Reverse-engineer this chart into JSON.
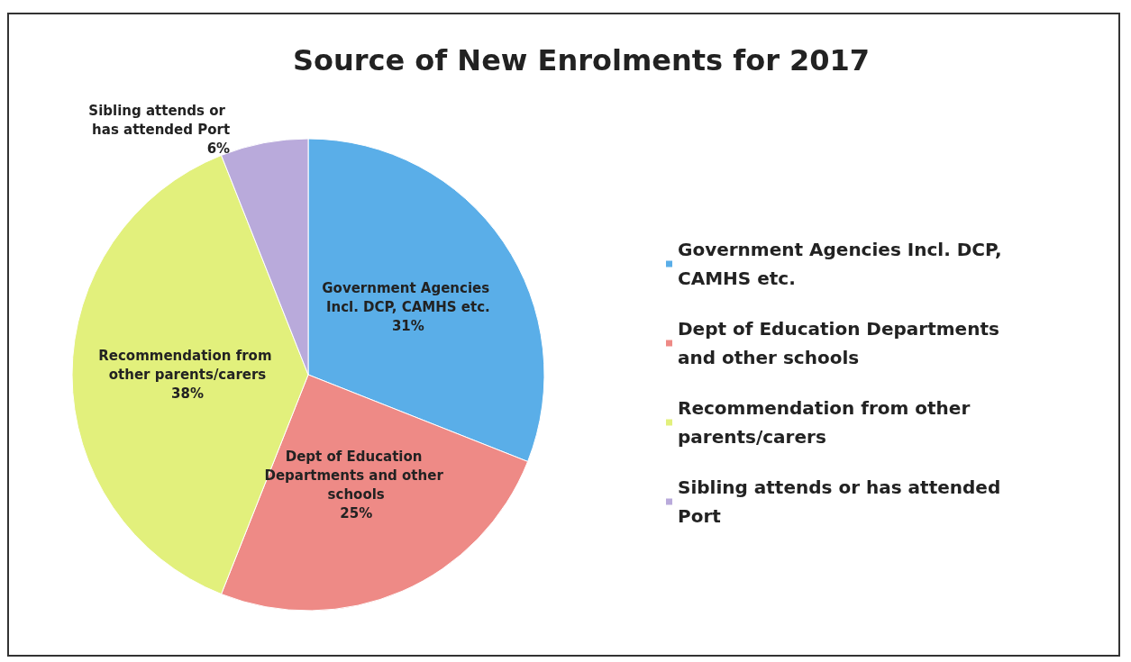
{
  "chart_data": {
    "type": "pie",
    "title": "Source of New Enrolments for 2017",
    "categories": [
      "Government Agencies Incl. DCP, CAMHS etc.",
      "Dept of Education Departments and other schools",
      "Recommendation from other parents/carers",
      "Sibling attends or has attended Port"
    ],
    "values": [
      31,
      25,
      38,
      6
    ],
    "value_labels": [
      "31%",
      "25%",
      "38%",
      "6%"
    ],
    "colors": [
      "#5aaee8",
      "#ee8a86",
      "#e2f07c",
      "#b9aadb"
    ],
    "legend": "right"
  }
}
